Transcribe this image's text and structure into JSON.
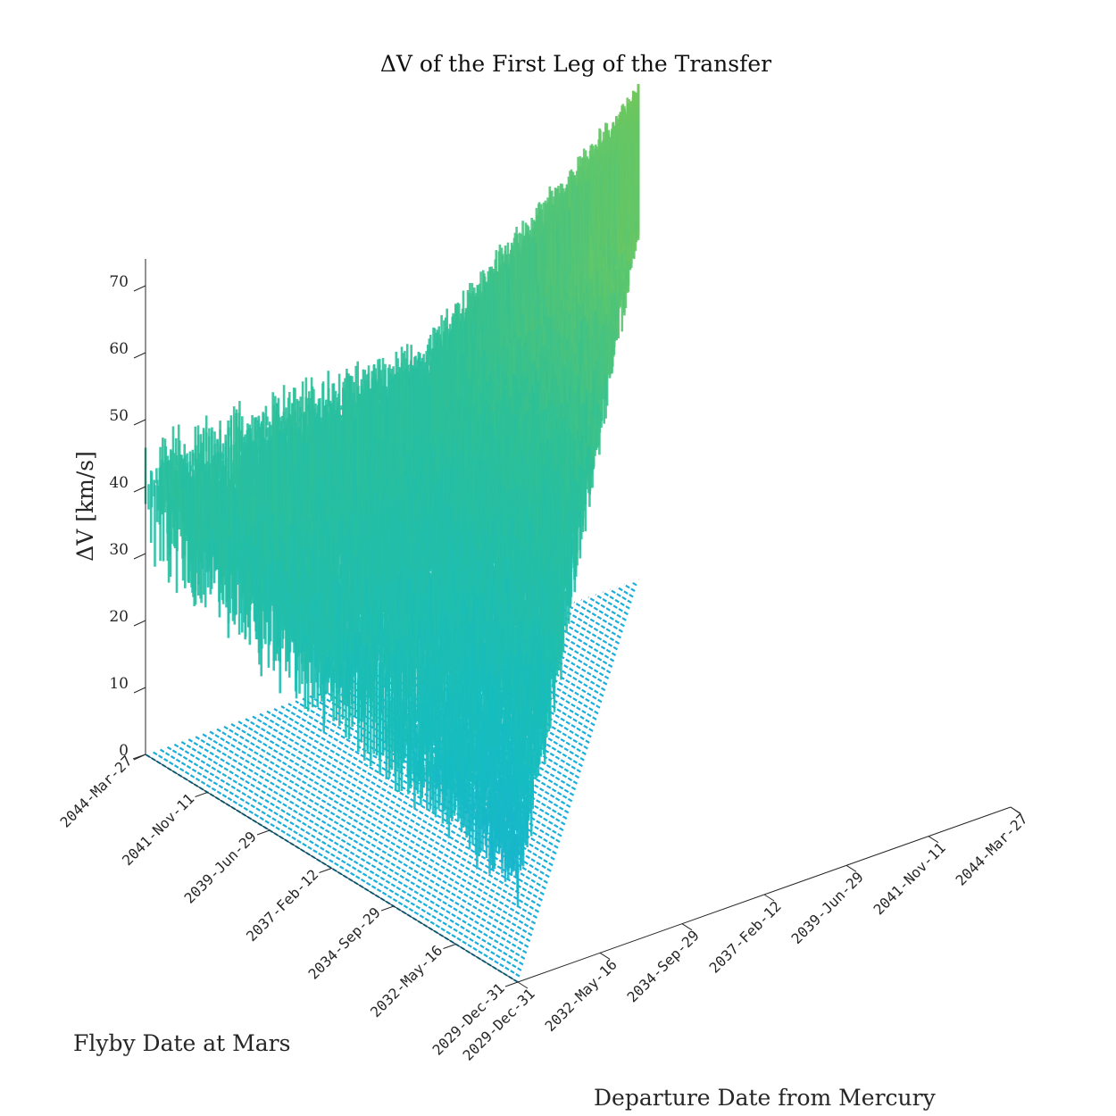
{
  "chart_data": {
    "type": "surface",
    "title": "ΔV of the First Leg of the Transfer",
    "xlabel": "Departure Date from Mercury",
    "ylabel": "Flyby Date at Mars",
    "zlabel": "ΔV [km/s]",
    "x_ticks": [
      "2029-Dec-31",
      "2032-May-16",
      "2034-Sep-29",
      "2037-Feb-12",
      "2039-Jun-29",
      "2041-Nov-11",
      "2044-Mar-27"
    ],
    "y_ticks": [
      "2029-Dec-31",
      "2032-May-16",
      "2034-Sep-29",
      "2037-Feb-12",
      "2039-Jun-29",
      "2041-Nov-11",
      "2044-Mar-27"
    ],
    "z_ticks": [
      "0",
      "10",
      "20",
      "30",
      "40",
      "50",
      "60",
      "70"
    ],
    "xlim": [
      "2029-Dec-31",
      "2044-Mar-27"
    ],
    "ylim": [
      "2029-Dec-31",
      "2044-Mar-27"
    ],
    "zlim": [
      0,
      74
    ],
    "grid": false,
    "colormap": [
      "#3e26a8",
      "#4772fa",
      "#1ca8e6",
      "#15bcc0",
      "#2ec096",
      "#6cc760",
      "#b8c42c"
    ],
    "surface_envelope": {
      "description_of_region": "flyby date later than departure date",
      "delta_v_min_along_diagonal": [
        {
          "departure": "2029-Dec-31",
          "value": 0
        },
        {
          "departure": "2037-Feb-12",
          "value": 8
        },
        {
          "departure": "2044-Mar-27",
          "value": 48
        }
      ],
      "delta_v_max_along_diagonal": [
        {
          "departure": "2029-Dec-31",
          "value": 20
        },
        {
          "departure": "2037-Feb-12",
          "value": 45
        },
        {
          "departure": "2044-Mar-27",
          "value": 74
        }
      ],
      "delta_v_along_departure_2029_dec_31": [
        {
          "flyby": "2029-Dec-31",
          "min": 0,
          "max": 20
        },
        {
          "flyby": "2037-Feb-12",
          "min": 10,
          "max": 35
        },
        {
          "flyby": "2044-Mar-27",
          "min": 22,
          "max": 48
        }
      ]
    }
  }
}
